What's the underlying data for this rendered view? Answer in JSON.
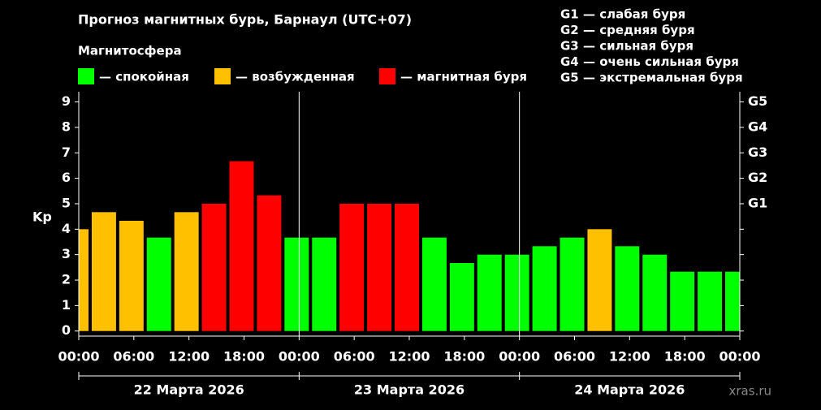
{
  "chart_data": {
    "type": "bar",
    "title": "Прогноз магнитных бурь, Барнаул (UTC+07)",
    "legend_title": "Магнитосфера",
    "legend": [
      {
        "label": "— спокойная",
        "color": "#00ff00"
      },
      {
        "label": "— возбужденная",
        "color": "#ffc000"
      },
      {
        "label": "— магнитная буря",
        "color": "#ff0000"
      }
    ],
    "g_scale": [
      "G1 — слабая буря",
      "G2 — средняя буря",
      "G3 — сильная буря",
      "G4 — очень сильная буря",
      "G5 — экстремальная буря"
    ],
    "y_label": "Kp",
    "x": [
      0,
      3,
      6,
      9,
      12,
      15,
      18,
      21,
      24,
      27,
      30,
      33,
      36,
      39,
      42,
      45,
      48,
      51,
      54,
      57,
      60,
      63,
      66,
      69,
      72
    ],
    "values": [
      4,
      4.67,
      4.33,
      3.67,
      4.67,
      5,
      6.67,
      5.33,
      3.67,
      3.67,
      5,
      5,
      5,
      3.67,
      2.67,
      3,
      3,
      3.33,
      3.67,
      4,
      3.33,
      3,
      2.33,
      2.33,
      2.33
    ],
    "colors": [
      "#ffc000",
      "#ffc000",
      "#ffc000",
      "#00ff00",
      "#ffc000",
      "#ff0000",
      "#ff0000",
      "#ff0000",
      "#00ff00",
      "#00ff00",
      "#ff0000",
      "#ff0000",
      "#ff0000",
      "#00ff00",
      "#00ff00",
      "#00ff00",
      "#00ff00",
      "#00ff00",
      "#00ff00",
      "#ffc000",
      "#00ff00",
      "#00ff00",
      "#00ff00",
      "#00ff00",
      "#00ff00"
    ],
    "xlim": [
      0,
      72
    ],
    "xticks": [
      {
        "value": 0,
        "label": "00:00"
      },
      {
        "value": 6,
        "label": "06:00"
      },
      {
        "value": 12,
        "label": "12:00"
      },
      {
        "value": 18,
        "label": "18:00"
      },
      {
        "value": 24,
        "label": "00:00"
      },
      {
        "value": 30,
        "label": "06:00"
      },
      {
        "value": 36,
        "label": "12:00"
      },
      {
        "value": 42,
        "label": "18:00"
      },
      {
        "value": 48,
        "label": "00:00"
      },
      {
        "value": 54,
        "label": "06:00"
      },
      {
        "value": 60,
        "label": "12:00"
      },
      {
        "value": 66,
        "label": "18:00"
      },
      {
        "value": 72,
        "label": "00:00"
      }
    ],
    "days": [
      "22 Марта 2026",
      "23 Марта 2026",
      "24 Марта 2026"
    ],
    "ylim": [
      -0.2,
      9.4
    ],
    "yticks": [
      0,
      1,
      2,
      3,
      4,
      5,
      6,
      7,
      8,
      9
    ],
    "y2ticks": [
      {
        "value": 5,
        "label": "G1"
      },
      {
        "value": 6,
        "label": "G2"
      },
      {
        "value": 7,
        "label": "G3"
      },
      {
        "value": 8,
        "label": "G4"
      },
      {
        "value": 9,
        "label": "G5"
      }
    ],
    "watermark": "xras.ru"
  }
}
